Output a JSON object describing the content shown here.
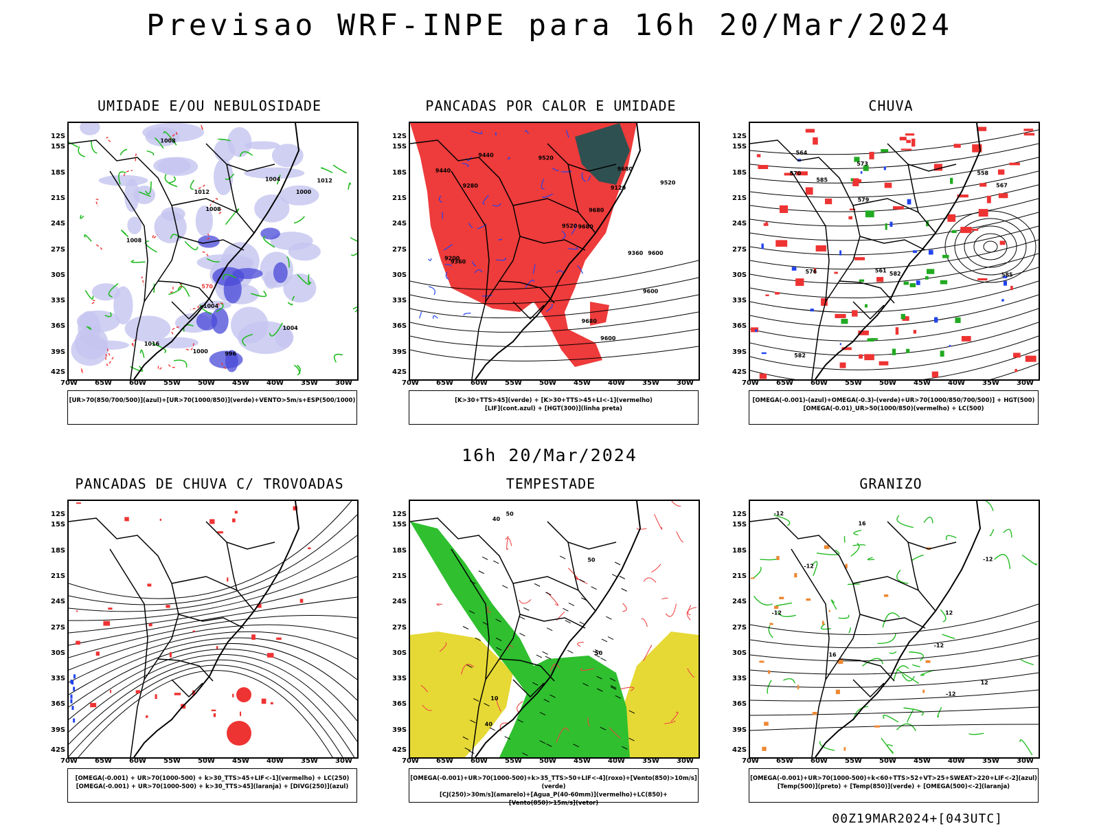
{
  "title": "Previsao WRF-INPE  para 16h 20/Mar/2024",
  "subtitle": "16h 20/Mar/2024",
  "footer": "00Z19MAR2024+[043UTC]",
  "lat_labels": [
    "12S",
    "15S",
    "18S",
    "21S",
    "24S",
    "27S",
    "30S",
    "33S",
    "36S",
    "39S",
    "42S"
  ],
  "lon_labels": [
    "70W",
    "65W",
    "60W",
    "55W",
    "50W",
    "45W",
    "40W",
    "35W",
    "30W"
  ],
  "panels": [
    {
      "title": "UMIDADE E/OU NEBULOSIDADE",
      "legend": [
        "[UR>70(850/700/500)](azul)+[UR>70(1000/850)](verde)+VENTO>5m/s+ESP(500/1000)"
      ],
      "labels": [
        "1008",
        "1008",
        "1008",
        "1004",
        "1004",
        "1012",
        "1012",
        "1000",
        "1000",
        "996",
        "1004",
        "1016",
        "570"
      ]
    },
    {
      "title": "PANCADAS POR CALOR E UMIDADE",
      "legend": [
        "[K>30+TTS>45](verde) + [K>30+TTS>45+LI<-1](vermelho)",
        "[LIF](cont.azul) + [HGT(300)](linha preta)"
      ],
      "labels": [
        "9680",
        "9680",
        "9680",
        "9680",
        "9600",
        "9520",
        "9600",
        "9520",
        "9440",
        "9360",
        "9280",
        "9200",
        "9120",
        "9600",
        "9520",
        "9440",
        "9360"
      ]
    },
    {
      "title": "CHUVA",
      "legend": [
        "[OMEGA(-0.001)-(azul)+OMEGA(-0.3)-(verde)+UR>70(1000/850/700/500)] + HGT(500)",
        "[OMEGA(-0.01)_UR>50(1000/850)(vermelho) + LC(500)"
      ],
      "labels": [
        "585",
        "585",
        "582",
        "582",
        "579",
        "576",
        "573",
        "570",
        "567",
        "564",
        "561",
        "558"
      ]
    },
    {
      "title": "PANCADAS DE CHUVA C/ TROVOADAS",
      "legend": [
        "[OMEGA(-0.001) + UR>70(1000-500) + k>30_TTS>45+LIF<-1](vermelho) + LC(250)",
        "[OMEGA(-0.001) + UR>70(1000-500) + k>30_TTS>45](laranja) + [DIVG(250)](azul)"
      ],
      "labels": []
    },
    {
      "title": "TEMPESTADE",
      "legend": [
        "[OMEGA(-0.001)+UR>70(1000-500)+k>35_TTS>50+LIF<-4](roxo)+[Vento(850)>10m/s](verde)",
        "[CJ(250)>30m/s](amarelo)+[Agua_P(40-60mm)](vermelho)+LC(850)+[Vento(850)>15m/s](vetor)"
      ],
      "labels": [
        "40",
        "50",
        "50",
        "40",
        "10",
        "50"
      ]
    },
    {
      "title": "GRANIZO",
      "legend": [
        "[OMEGA(-0.001)+UR>70(1000-500)+k<60+TTS>52+VT>25+SWEAT>220+LIF<-2](azul)",
        "[Temp(500)](preto) + [Temp(850)](verde) + [OMEGA(500)<-2](laranja)"
      ],
      "labels": [
        "-12",
        "-12",
        "-12",
        "-12",
        "-12",
        "-12",
        "12",
        "16",
        "16",
        "12"
      ]
    }
  ]
}
